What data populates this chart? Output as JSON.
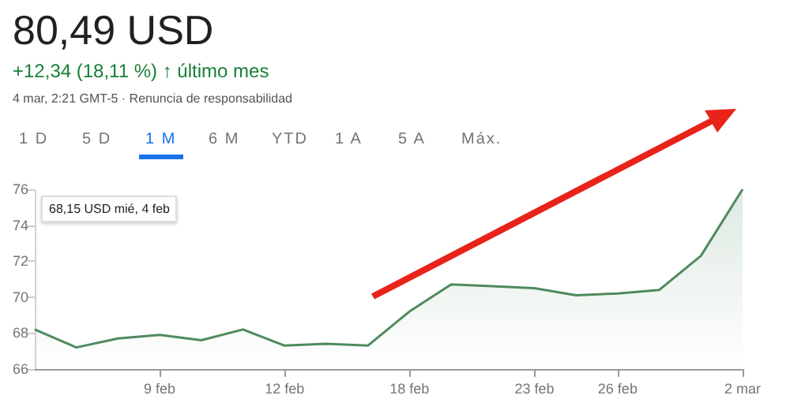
{
  "chart_data": {
    "type": "area",
    "title": "80,49 USD",
    "subtitle": "+12,34 (18,11 %) ↑ último mes",
    "annotations": [
      "4 mar, 2:21 GMT-5 · Renuncia de responsabilidad",
      "1 D",
      "5 D",
      "1 M",
      "6 M",
      "YTD",
      "1 A",
      "5 A",
      "Máx.",
      "68,15 USD  mié, 4 feb"
    ],
    "categories": [
      null,
      null,
      null,
      "9 feb",
      null,
      null,
      "12 feb",
      null,
      null,
      "18 feb",
      null,
      null,
      "23 feb",
      null,
      "26 feb",
      null,
      null,
      "2 mar"
    ],
    "series": [
      {
        "color": "#4e8a5e",
        "values": [
          68.2,
          67.2,
          67.7,
          67.9,
          67.6,
          68.2,
          67.3,
          67.4,
          67.3,
          69.2,
          70.7,
          70.6,
          70.5,
          70.1,
          70.2,
          70.4,
          72.3,
          76
        ]
      }
    ],
    "ylim": [
      66,
      76
    ],
    "yticks": [
      66,
      68,
      70,
      72,
      74,
      76
    ],
    "grid": false,
    "marker": "none",
    "line_style": "solid"
  }
}
